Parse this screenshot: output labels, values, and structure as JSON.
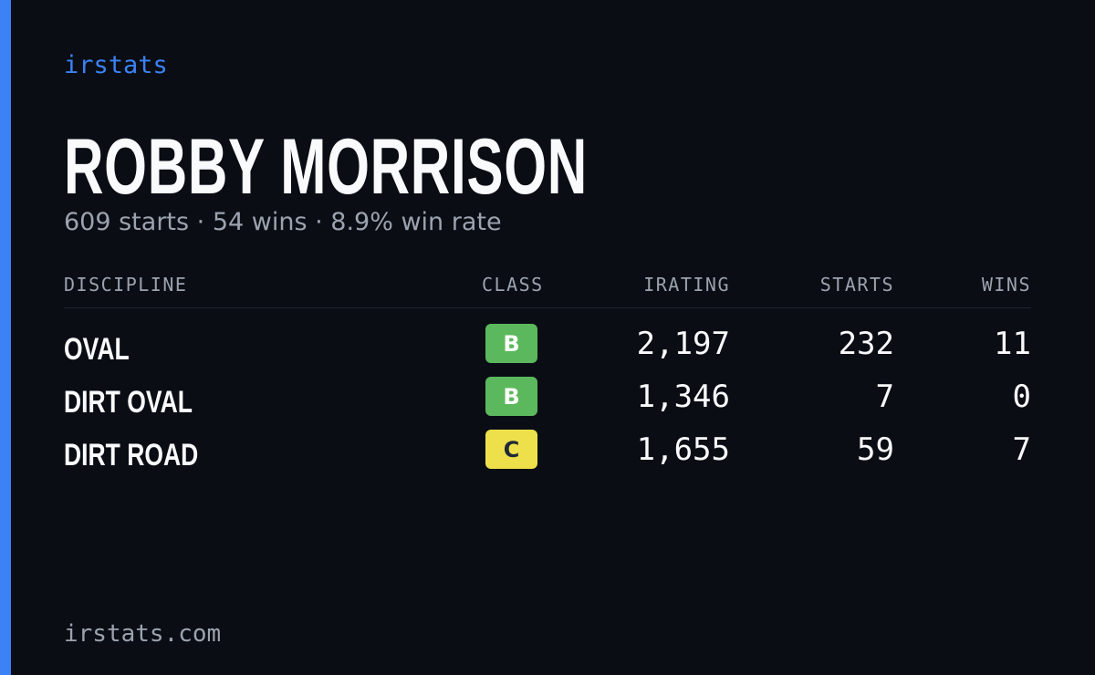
{
  "brand": "irstats",
  "player": {
    "name": "ROBBY MORRISON",
    "summary": "609 starts · 54 wins · 8.9% win rate"
  },
  "table": {
    "headers": [
      "DISCIPLINE",
      "CLASS",
      "IRATING",
      "STARTS",
      "WINS"
    ],
    "rows": [
      {
        "discipline": "OVAL",
        "class": "B",
        "class_color": "#5cb85c",
        "class_text_color": "#ffffff",
        "irating": "2,197",
        "starts": "232",
        "wins": "11"
      },
      {
        "discipline": "DIRT OVAL",
        "class": "B",
        "class_color": "#5cb85c",
        "class_text_color": "#ffffff",
        "irating": "1,346",
        "starts": "7",
        "wins": "0"
      },
      {
        "discipline": "DIRT ROAD",
        "class": "C",
        "class_color": "#eee04a",
        "class_text_color": "#1f2937",
        "irating": "1,655",
        "starts": "59",
        "wins": "7"
      }
    ]
  },
  "footer": "irstats.com"
}
